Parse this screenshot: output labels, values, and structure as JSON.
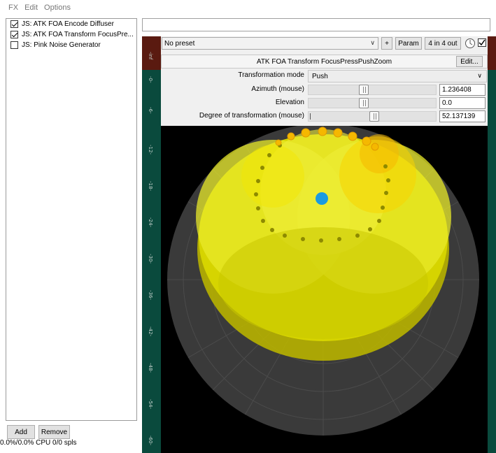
{
  "menu": [
    "FX",
    "Edit",
    "Options"
  ],
  "fx_chain": [
    {
      "label": "JS: ATK FOA Encode Diffuser",
      "enabled": true
    },
    {
      "label": "JS: ATK FOA Transform FocusPre...",
      "enabled": true
    },
    {
      "label": "JS: Pink Noise Generator",
      "enabled": false
    }
  ],
  "buttons": {
    "add": "Add",
    "remove": "Remove"
  },
  "cpu_status": "0.0%/0.0% CPU 0/0 spls",
  "preset": {
    "value": "No preset",
    "dropdown_arrow": "∨",
    "plus": "+",
    "param": "Param",
    "io": "4 in 4 out"
  },
  "plugin_title": "ATK FOA Transform FocusPressPushZoom",
  "edit_button": "Edit...",
  "params": {
    "mode": {
      "label": "Transformation mode",
      "value": "Push",
      "arrow": "∨"
    },
    "azimuth": {
      "label": "Azimuth (mouse)",
      "value": "1.236408",
      "position": 0.43
    },
    "elevation": {
      "label": "Elevation",
      "value": "0.0",
      "position": 0.43
    },
    "degree": {
      "label": "Degree of transformation (mouse)",
      "value": "52.137139",
      "position": 0.52
    }
  },
  "meter_labels": [
    "-inf",
    "-0-",
    "-6-",
    "-12-",
    "-18-",
    "-24-",
    "-30-",
    "-36-",
    "-42-",
    "-48-",
    "-54-",
    "-60-"
  ],
  "colors": {
    "meter_bg": "#0a4a3d",
    "clip": "#5a1a10",
    "yellow": "#e8ea20",
    "orange": "#f5b800",
    "dot": "#1a9be0"
  }
}
